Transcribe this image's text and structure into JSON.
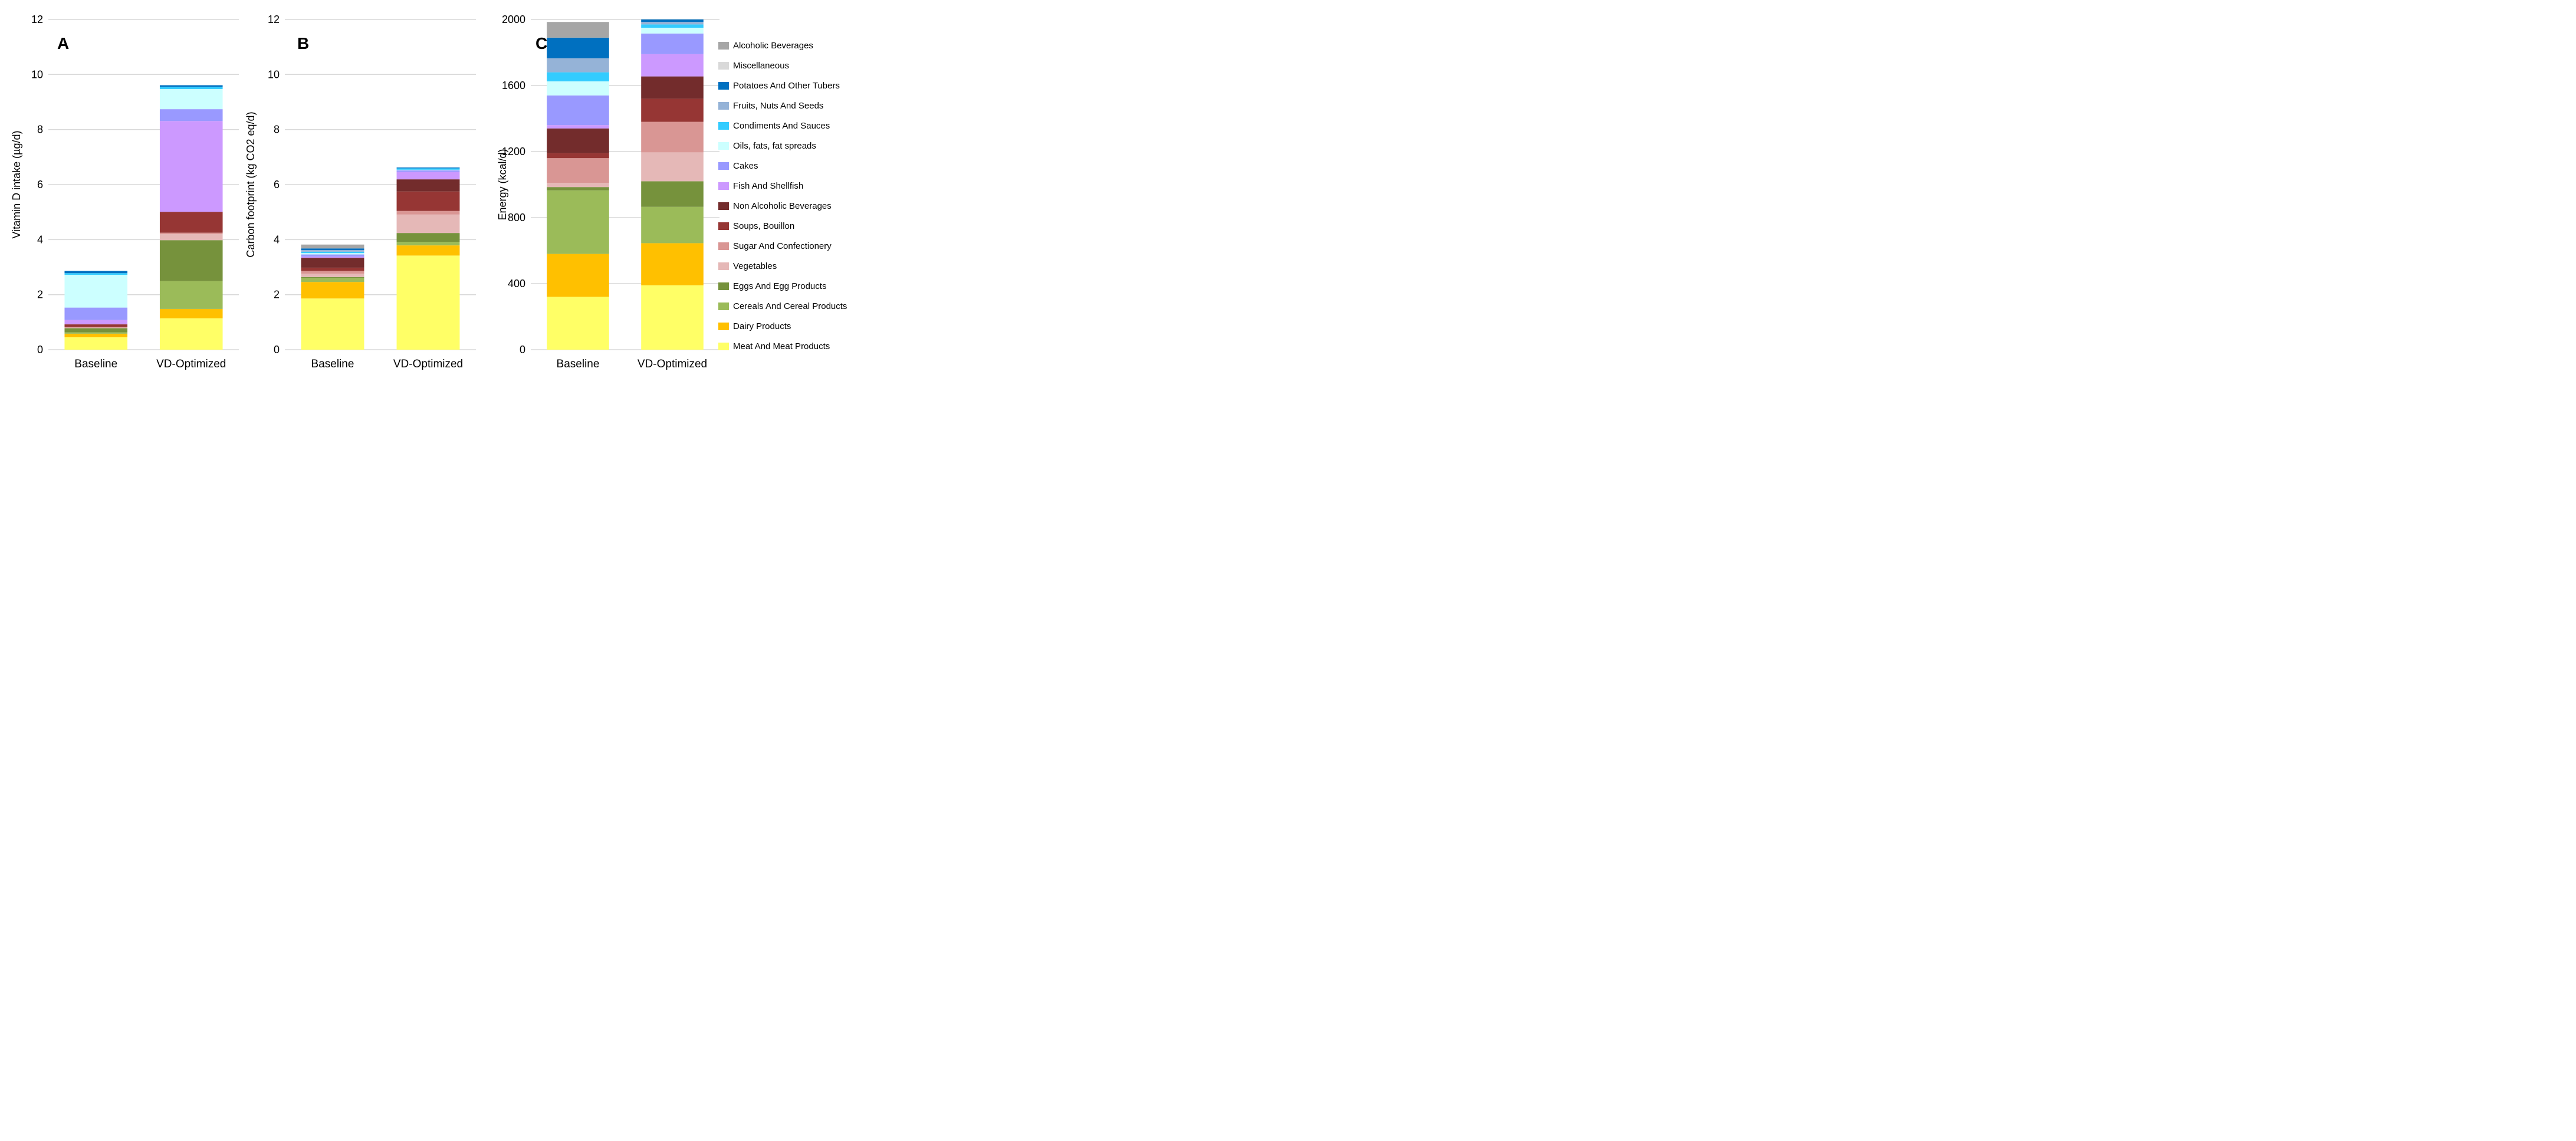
{
  "figure_title": "",
  "categories": [
    "Baseline",
    "VD-Optimized"
  ],
  "colors": {
    "grid": "#d9d9d9",
    "text": "#000000",
    "background": "#ffffff"
  },
  "legend": {
    "items": [
      {
        "label": "Alcoholic Beverages",
        "color": "#a6a6a6"
      },
      {
        "label": "Miscellaneous",
        "color": "#d9d9d9"
      },
      {
        "label": "Potatoes And Other Tubers",
        "color": "#0070c0"
      },
      {
        "label": "Fruits, Nuts And Seeds",
        "color": "#95b3d7"
      },
      {
        "label": "Condiments And Sauces",
        "color": "#33ccff"
      },
      {
        "label": "Oils, fats, fat spreads",
        "color": "#ccffff"
      },
      {
        "label": "Cakes",
        "color": "#9999ff"
      },
      {
        "label": "Fish And Shellfish",
        "color": "#cc99ff"
      },
      {
        "label": "Non Alcoholic Beverages",
        "color": "#732c2c"
      },
      {
        "label": "Soups, Bouillon",
        "color": "#963634"
      },
      {
        "label": "Sugar And Confectionery",
        "color": "#d99694"
      },
      {
        "label": "Vegetables",
        "color": "#e5b8b7"
      },
      {
        "label": "Eggs And Egg Products",
        "color": "#76923c"
      },
      {
        "label": "Cereals And Cereal Products",
        "color": "#9bbb59"
      },
      {
        "label": "Dairy Products",
        "color": "#ffc000"
      },
      {
        "label": "Meat And Meat Products",
        "color": "#ffff66"
      }
    ]
  },
  "chart_data": [
    {
      "type": "bar",
      "stacked": true,
      "panel_letter": "A",
      "ylabel": "Vitamin D intake (µg/d)",
      "xlabel": "",
      "ylim": [
        0,
        12
      ],
      "ytick_step": 2,
      "yticks": [
        "0",
        "2",
        "4",
        "6",
        "8",
        "10",
        "12"
      ],
      "grid": true,
      "legend_position": "none",
      "categories": [
        "Baseline",
        "VD-Optimized"
      ],
      "series": [
        {
          "name": "Meat And Meat Products",
          "color": "#ffff66",
          "values": [
            0.45,
            1.14
          ]
        },
        {
          "name": "Dairy Products",
          "color": "#ffc000",
          "values": [
            0.13,
            0.34
          ]
        },
        {
          "name": "Cereals And Cereal Products",
          "color": "#9bbb59",
          "values": [
            0.05,
            1.01
          ]
        },
        {
          "name": "Eggs And Egg Products",
          "color": "#76923c",
          "values": [
            0.15,
            1.49
          ]
        },
        {
          "name": "Vegetables",
          "color": "#e5b8b7",
          "values": [
            0.02,
            0.22
          ]
        },
        {
          "name": "Sugar And Confectionery",
          "color": "#d99694",
          "values": [
            0.02,
            0.05
          ]
        },
        {
          "name": "Soups, Bouillon",
          "color": "#963634",
          "values": [
            0.1,
            0.76
          ]
        },
        {
          "name": "Non Alcoholic Beverages",
          "color": "#732c2c",
          "values": [
            0,
            0
          ]
        },
        {
          "name": "Fish And Shellfish",
          "color": "#cc99ff",
          "values": [
            0.16,
            3.3
          ]
        },
        {
          "name": "Cakes",
          "color": "#9999ff",
          "values": [
            0.45,
            0.43
          ]
        },
        {
          "name": "Oils, fats, fat spreads",
          "color": "#ccffff",
          "values": [
            1.19,
            0.73
          ]
        },
        {
          "name": "Condiments And Sauces",
          "color": "#33ccff",
          "values": [
            0.06,
            0.08
          ]
        },
        {
          "name": "Fruits, Nuts And Seeds",
          "color": "#95b3d7",
          "values": [
            0,
            0
          ]
        },
        {
          "name": "Potatoes And Other Tubers",
          "color": "#0070c0",
          "values": [
            0.08,
            0.06
          ]
        },
        {
          "name": "Miscellaneous",
          "color": "#d9d9d9",
          "values": [
            0,
            0
          ]
        },
        {
          "name": "Alcoholic Beverages",
          "color": "#a6a6a6",
          "values": [
            0,
            0
          ]
        }
      ]
    },
    {
      "type": "bar",
      "stacked": true,
      "panel_letter": "B",
      "ylabel": "Carbon footprint (kg CO2 eq/d)",
      "xlabel": "",
      "ylim": [
        0,
        12
      ],
      "ytick_step": 2,
      "yticks": [
        "0",
        "2",
        "4",
        "6",
        "8",
        "10",
        "12"
      ],
      "grid": true,
      "legend_position": "none",
      "categories": [
        "Baseline",
        "VD-Optimized"
      ],
      "series": [
        {
          "name": "Meat And Meat Products",
          "color": "#ffff66",
          "values": [
            1.86,
            3.42
          ]
        },
        {
          "name": "Dairy Products",
          "color": "#ffc000",
          "values": [
            0.6,
            0.37
          ]
        },
        {
          "name": "Cereals And Cereal Products",
          "color": "#9bbb59",
          "values": [
            0.15,
            0.13
          ]
        },
        {
          "name": "Eggs And Egg Products",
          "color": "#76923c",
          "values": [
            0.03,
            0.32
          ]
        },
        {
          "name": "Vegetables",
          "color": "#e5b8b7",
          "values": [
            0.12,
            0.67
          ]
        },
        {
          "name": "Sugar And Confectionery",
          "color": "#d99694",
          "values": [
            0.1,
            0.13
          ]
        },
        {
          "name": "Soups, Bouillon",
          "color": "#963634",
          "values": [
            0.12,
            0.71
          ]
        },
        {
          "name": "Non Alcoholic Beverages",
          "color": "#732c2c",
          "values": [
            0.36,
            0.44
          ]
        },
        {
          "name": "Fish And Shellfish",
          "color": "#cc99ff",
          "values": [
            0.04,
            0.27
          ]
        },
        {
          "name": "Cakes",
          "color": "#9999ff",
          "values": [
            0.08,
            0.06
          ]
        },
        {
          "name": "Oils, fats, fat spreads",
          "color": "#ccffff",
          "values": [
            0.05,
            0.02
          ]
        },
        {
          "name": "Condiments And Sauces",
          "color": "#33ccff",
          "values": [
            0.05,
            0.05
          ]
        },
        {
          "name": "Fruits, Nuts And Seeds",
          "color": "#95b3d7",
          "values": [
            0.06,
            0
          ]
        },
        {
          "name": "Potatoes And Other Tubers",
          "color": "#0070c0",
          "values": [
            0.06,
            0.03
          ]
        },
        {
          "name": "Miscellaneous",
          "color": "#d9d9d9",
          "values": [
            0,
            0
          ]
        },
        {
          "name": "Alcoholic Beverages",
          "color": "#a6a6a6",
          "values": [
            0.14,
            0
          ]
        }
      ]
    },
    {
      "type": "bar",
      "stacked": true,
      "panel_letter": "C",
      "ylabel": "Energy (kcal/d)",
      "xlabel": "",
      "ylim": [
        0,
        2000
      ],
      "ytick_step": 400,
      "yticks": [
        "0",
        "400",
        "800",
        "1200",
        "1600",
        "2000"
      ],
      "grid": true,
      "legend_position": "right",
      "categories": [
        "Baseline",
        "VD-Optimized"
      ],
      "series": [
        {
          "name": "Meat And Meat Products",
          "color": "#ffff66",
          "values": [
            320,
            390
          ]
        },
        {
          "name": "Dairy Products",
          "color": "#ffc000",
          "values": [
            260,
            255
          ]
        },
        {
          "name": "Cereals And Cereal Products",
          "color": "#9bbb59",
          "values": [
            385,
            220
          ]
        },
        {
          "name": "Eggs And Egg Products",
          "color": "#76923c",
          "values": [
            20,
            155
          ]
        },
        {
          "name": "Vegetables",
          "color": "#e5b8b7",
          "values": [
            25,
            175
          ]
        },
        {
          "name": "Sugar And Confectionery",
          "color": "#d99694",
          "values": [
            150,
            185
          ]
        },
        {
          "name": "Soups, Bouillon",
          "color": "#963634",
          "values": [
            30,
            140
          ]
        },
        {
          "name": "Non Alcoholic Beverages",
          "color": "#732c2c",
          "values": [
            150,
            135
          ]
        },
        {
          "name": "Fish And Shellfish",
          "color": "#cc99ff",
          "values": [
            20,
            135
          ]
        },
        {
          "name": "Cakes",
          "color": "#9999ff",
          "values": [
            180,
            125
          ]
        },
        {
          "name": "Oils, fats, fat spreads",
          "color": "#ccffff",
          "values": [
            85,
            35
          ]
        },
        {
          "name": "Condiments And Sauces",
          "color": "#33ccff",
          "values": [
            55,
            20
          ]
        },
        {
          "name": "Fruits, Nuts And Seeds",
          "color": "#95b3d7",
          "values": [
            85,
            15
          ]
        },
        {
          "name": "Potatoes And Other Tubers",
          "color": "#0070c0",
          "values": [
            125,
            15
          ]
        },
        {
          "name": "Miscellaneous",
          "color": "#d9d9d9",
          "values": [
            0,
            0
          ]
        },
        {
          "name": "Alcoholic Beverages",
          "color": "#a6a6a6",
          "values": [
            95,
            0
          ]
        }
      ]
    }
  ]
}
